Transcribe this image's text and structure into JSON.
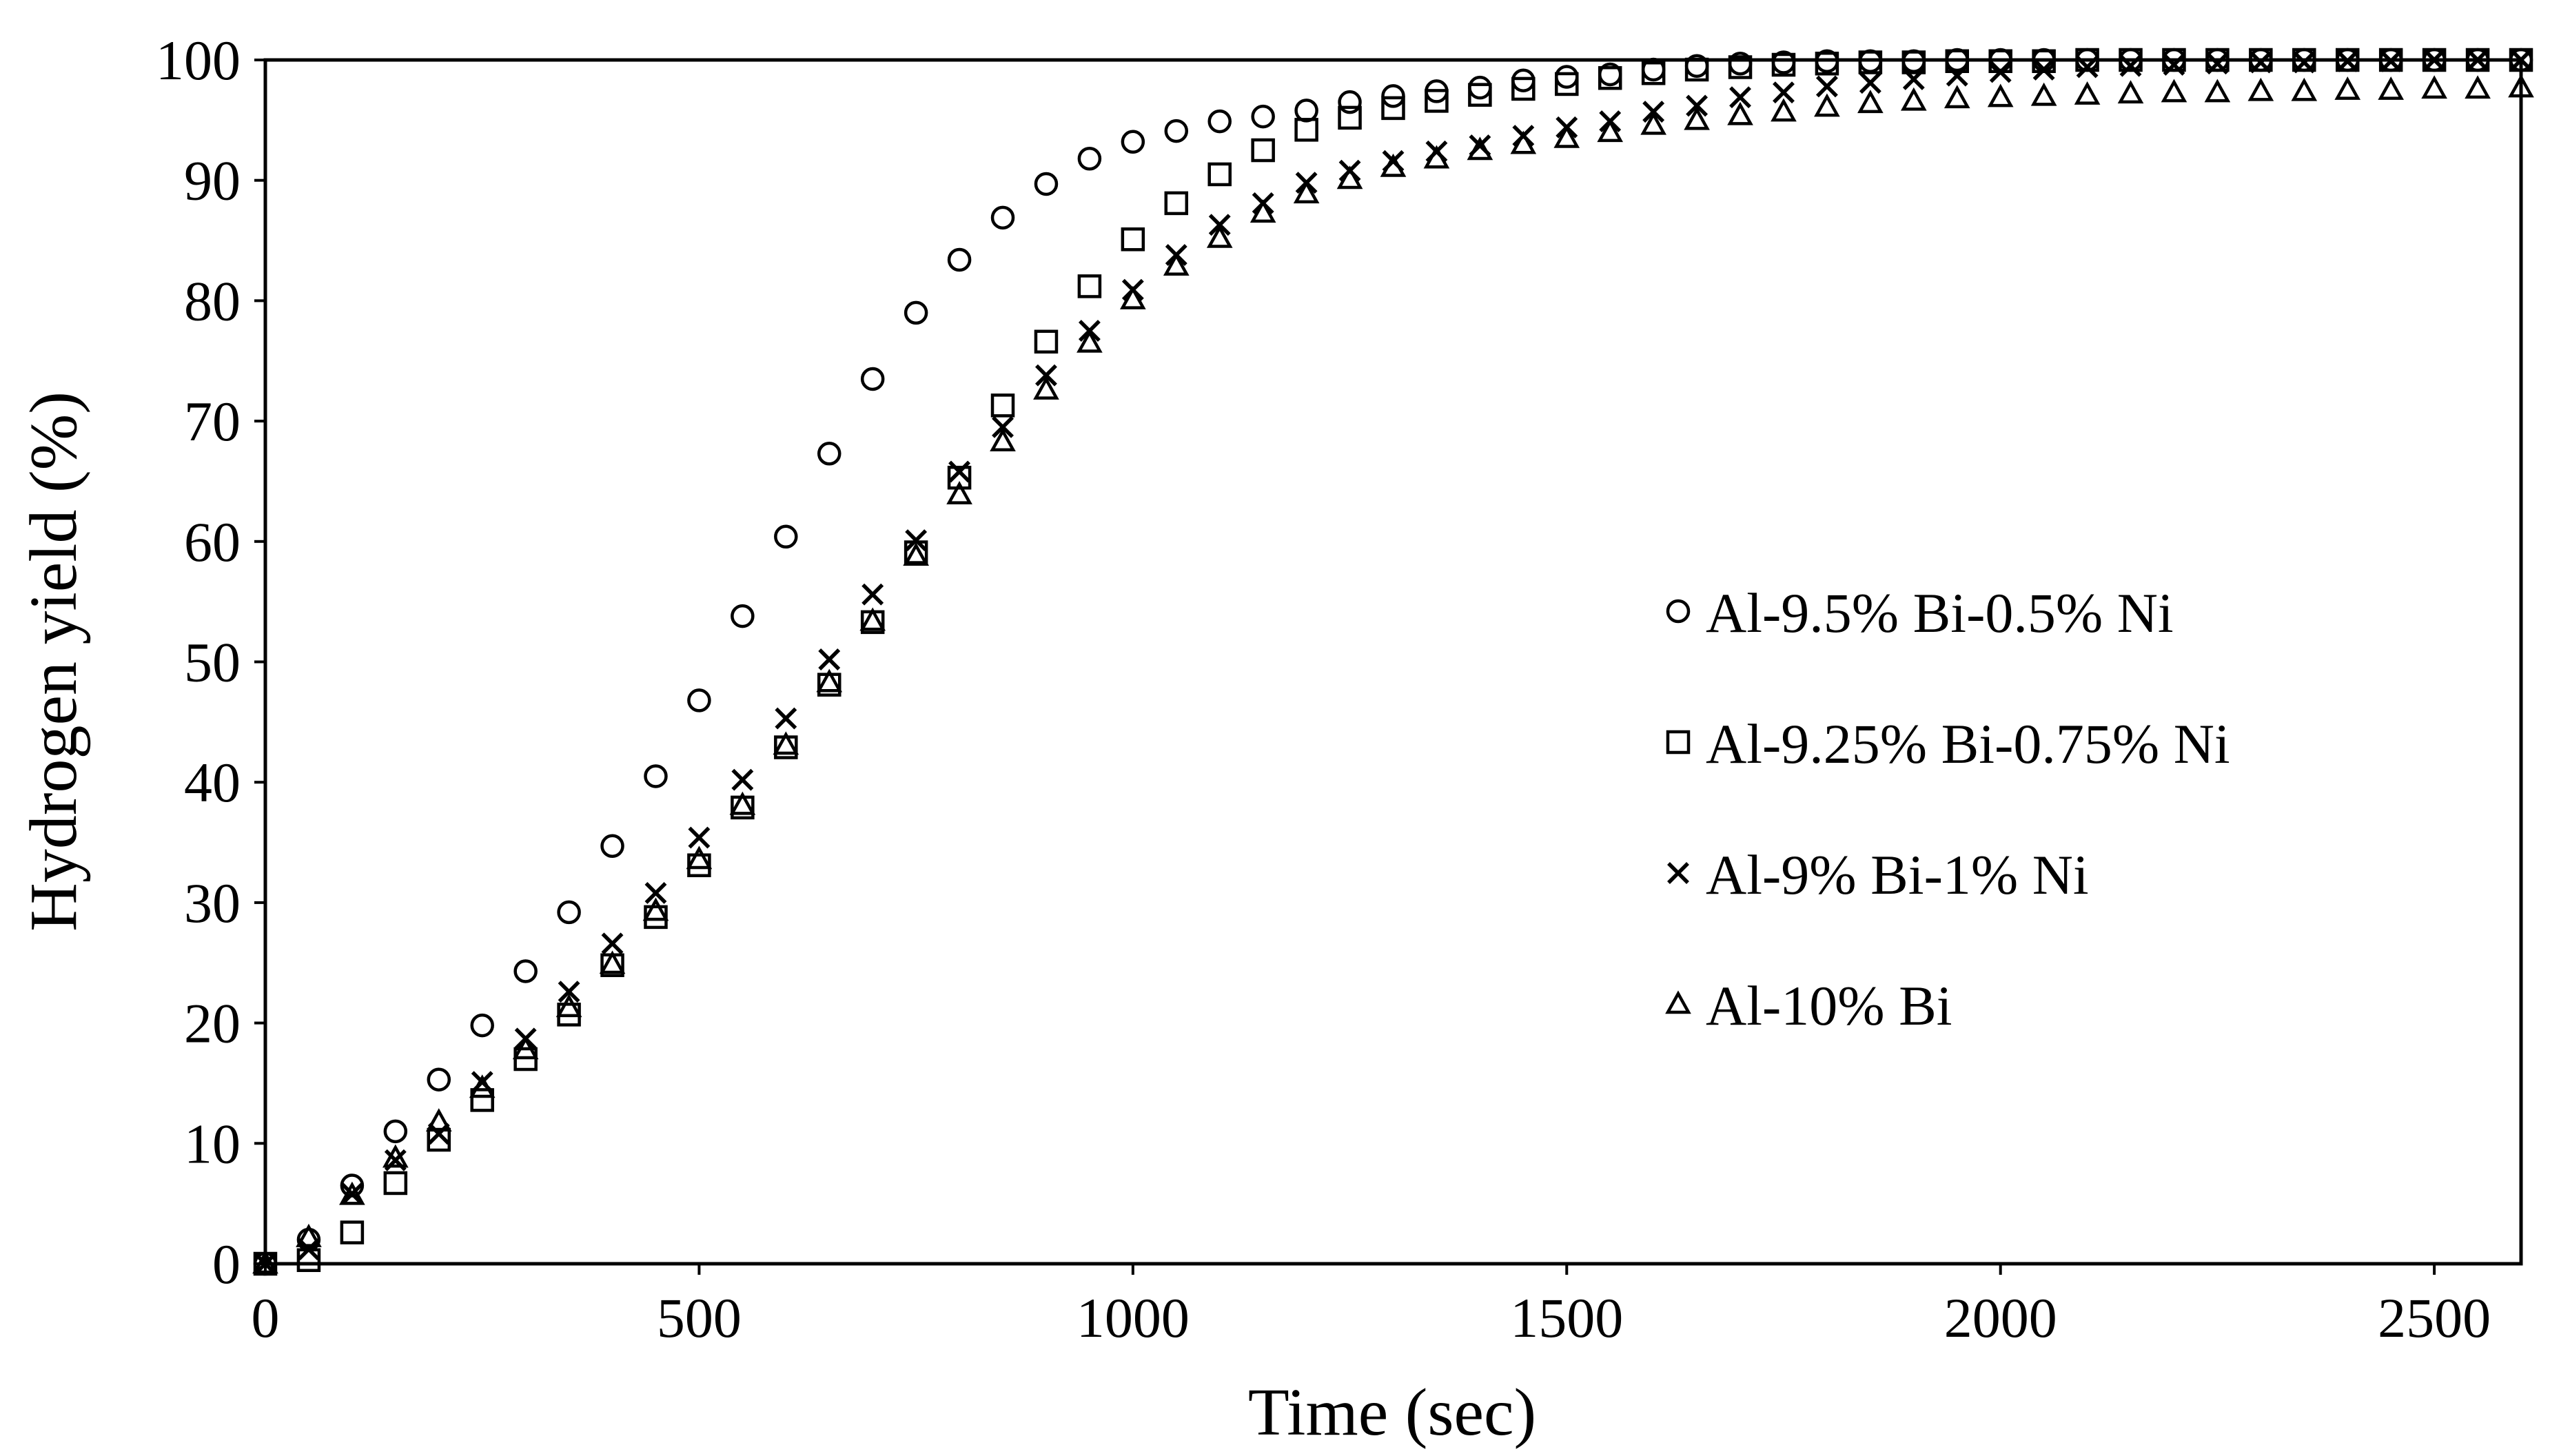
{
  "chart_data": {
    "type": "scatter",
    "title": "",
    "xlabel": "Time (sec)",
    "ylabel": "Hydrogen yield (%)",
    "xlim": [
      0,
      2600
    ],
    "ylim": [
      0,
      100
    ],
    "xticks": [
      0,
      500,
      1000,
      1500,
      2000,
      2500
    ],
    "yticks": [
      0,
      10,
      20,
      30,
      40,
      50,
      60,
      70,
      80,
      90,
      100
    ],
    "grid": false,
    "legend_position": "center-right",
    "x": [
      0,
      50,
      100,
      150,
      200,
      250,
      300,
      350,
      400,
      450,
      500,
      550,
      600,
      650,
      700,
      750,
      800,
      850,
      900,
      950,
      1000,
      1050,
      1100,
      1150,
      1200,
      1250,
      1300,
      1350,
      1400,
      1450,
      1500,
      1550,
      1600,
      1650,
      1700,
      1750,
      1800,
      1850,
      1900,
      1950,
      2000,
      2050,
      2100,
      2150,
      2200,
      2250,
      2300,
      2350,
      2400,
      2450,
      2500,
      2550,
      2600
    ],
    "series": [
      {
        "name": "Al-9.5% Bi-0.5% Ni",
        "marker": "circle",
        "values": [
          0,
          2,
          6.5,
          11,
          15.3,
          19.8,
          24.3,
          29.2,
          34.7,
          40.5,
          46.8,
          53.8,
          60.4,
          67.3,
          73.5,
          79,
          83.4,
          86.9,
          89.7,
          91.8,
          93.2,
          94.1,
          94.9,
          95.3,
          95.8,
          96.5,
          97,
          97.4,
          97.7,
          98.3,
          98.6,
          98.8,
          99.2,
          99.5,
          99.7,
          99.8,
          99.9,
          99.9,
          99.9,
          100,
          100,
          100,
          100,
          100,
          100,
          100,
          100,
          100,
          100,
          100,
          100,
          100,
          100
        ]
      },
      {
        "name": "Al-9.25% Bi-0.75% Ni",
        "marker": "square",
        "values": [
          0,
          0.3,
          2.6,
          6.7,
          10.3,
          13.6,
          17,
          20.7,
          24.8,
          28.8,
          33.1,
          37.9,
          42.9,
          48.1,
          53.3,
          59.1,
          65.3,
          71.3,
          76.6,
          81.2,
          85.1,
          88.1,
          90.5,
          92.5,
          94.2,
          95.2,
          96,
          96.6,
          97.1,
          97.6,
          98,
          98.5,
          98.9,
          99.2,
          99.4,
          99.6,
          99.7,
          99.8,
          99.8,
          99.9,
          99.9,
          99.9,
          100,
          100,
          100,
          100,
          100,
          100,
          100,
          100,
          100,
          100,
          100
        ]
      },
      {
        "name": "Al-9% Bi-1% Ni",
        "marker": "cross",
        "values": [
          0,
          1.2,
          5.8,
          8.6,
          10.8,
          15.1,
          18.7,
          22.6,
          26.6,
          30.8,
          35.4,
          40.2,
          45.3,
          50.2,
          55.6,
          60.1,
          65.8,
          69.5,
          73.8,
          77.5,
          80.9,
          83.8,
          86.3,
          88.1,
          89.8,
          90.8,
          91.6,
          92.4,
          92.9,
          93.7,
          94.4,
          94.9,
          95.7,
          96.2,
          96.9,
          97.3,
          97.8,
          98.1,
          98.4,
          98.7,
          99,
          99.2,
          99.4,
          99.5,
          99.6,
          99.7,
          99.8,
          99.8,
          99.9,
          99.9,
          100,
          100,
          100
        ]
      },
      {
        "name": "Al-10% Bi",
        "marker": "triangle",
        "values": [
          0,
          2.2,
          5.7,
          8.8,
          11.8,
          14.6,
          17.8,
          21.3,
          24.9,
          29.3,
          33.6,
          38.1,
          43.1,
          48.3,
          53.4,
          58.8,
          63.9,
          68.3,
          72.6,
          76.5,
          80.1,
          82.9,
          85.2,
          87.3,
          88.9,
          90.1,
          91.1,
          91.8,
          92.5,
          93,
          93.5,
          94,
          94.6,
          95,
          95.4,
          95.7,
          96.1,
          96.4,
          96.6,
          96.8,
          96.9,
          97,
          97.1,
          97.2,
          97.3,
          97.3,
          97.4,
          97.4,
          97.5,
          97.5,
          97.6,
          97.6,
          97.7
        ]
      }
    ]
  }
}
